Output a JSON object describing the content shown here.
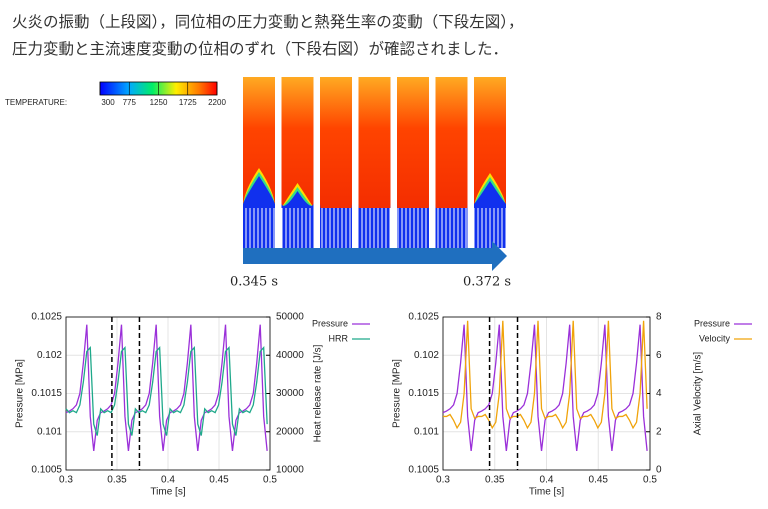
{
  "text": {
    "line1": "火炎の振動（上段図），同位相の圧力変動と熱発生率の変動（下段左図），",
    "line2": "圧力変動と主流速度変動の位相のずれ（下段右図）が確認されました．"
  },
  "figure": {
    "colorbar": {
      "label": "TEMPERATURE:",
      "ticks": [
        300,
        775,
        1250,
        1725,
        2200
      ]
    },
    "time_start": "0.345 s",
    "time_end": "0.372 s"
  },
  "chart_data": [
    {
      "type": "line",
      "xlabel": "Time [s]",
      "ylabel": "Pressure [MPa]",
      "y2label": "Heat release rate [J/s]",
      "xlim": [
        0.3,
        0.5
      ],
      "xticks": [
        0.3,
        0.35,
        0.4,
        0.45,
        0.5
      ],
      "ylim": [
        0.1005,
        0.1025
      ],
      "yticks": [
        0.1005,
        0.101,
        0.1015,
        0.102,
        0.1025
      ],
      "y2lim": [
        10000,
        50000
      ],
      "y2ticks": [
        10000,
        20000,
        30000,
        40000,
        50000
      ],
      "grid": true,
      "markers": [
        0.345,
        0.372
      ],
      "x": [
        0.3,
        0.3034,
        0.3068,
        0.3102,
        0.3136,
        0.317,
        0.3204,
        0.3238,
        0.3272,
        0.3306,
        0.334,
        0.3374,
        0.3408,
        0.3442,
        0.3476,
        0.351,
        0.3544,
        0.3578,
        0.3612,
        0.3646,
        0.368,
        0.3714,
        0.3748,
        0.3782,
        0.3816,
        0.385,
        0.3884,
        0.3918,
        0.3952,
        0.3986,
        0.402,
        0.4054,
        0.4088,
        0.4122,
        0.4156,
        0.419,
        0.4224,
        0.4258,
        0.4292,
        0.4326,
        0.436,
        0.4394,
        0.4428,
        0.4462,
        0.4496,
        0.453,
        0.4564,
        0.4598,
        0.4632,
        0.4666,
        0.47,
        0.4734,
        0.4768,
        0.4802,
        0.4836,
        0.487,
        0.4904,
        0.4938,
        0.4972
      ],
      "series": [
        {
          "name": "Pressure",
          "color": "#9b30d9",
          "values": [
            0.10125,
            0.10127,
            0.1013,
            0.10135,
            0.1015,
            0.1019,
            0.1024,
            0.1012,
            0.10075,
            0.10115,
            0.10125,
            0.10127,
            0.1013,
            0.10135,
            0.1015,
            0.1019,
            0.1024,
            0.1012,
            0.10075,
            0.10115,
            0.10125,
            0.10127,
            0.1013,
            0.10135,
            0.1015,
            0.1019,
            0.1024,
            0.1012,
            0.10075,
            0.10115,
            0.10125,
            0.10127,
            0.1013,
            0.10135,
            0.1015,
            0.1019,
            0.1024,
            0.1012,
            0.10075,
            0.10115,
            0.10125,
            0.10127,
            0.1013,
            0.10135,
            0.1015,
            0.1019,
            0.1024,
            0.1012,
            0.10075,
            0.10115,
            0.10125,
            0.10127,
            0.1013,
            0.10135,
            0.1015,
            0.1019,
            0.1024,
            0.1012,
            0.10075
          ]
        },
        {
          "name": "HRR",
          "color": "#1fa98a",
          "axis": "y2",
          "values": [
            26000,
            25000,
            25500,
            25000,
            27000,
            33000,
            41000,
            42000,
            22000,
            19000,
            26000,
            25000,
            25500,
            25000,
            27000,
            33000,
            41000,
            42000,
            22000,
            19000,
            26000,
            25000,
            25500,
            25000,
            27000,
            33000,
            41000,
            42000,
            22000,
            19000,
            26000,
            25000,
            25500,
            25000,
            27000,
            33000,
            41000,
            42000,
            22000,
            19000,
            26000,
            25000,
            25500,
            25000,
            27000,
            33000,
            41000,
            42000,
            22000,
            19000,
            26000,
            25000,
            25500,
            25000,
            27000,
            33000,
            41000,
            42000,
            22000
          ]
        }
      ]
    },
    {
      "type": "line",
      "xlabel": "Time [s]",
      "ylabel": "Pressure [MPa]",
      "y2label": "Axial Velocity [m/s]",
      "xlim": [
        0.3,
        0.5
      ],
      "xticks": [
        0.3,
        0.35,
        0.4,
        0.45,
        0.5
      ],
      "ylim": [
        0.1005,
        0.1025
      ],
      "yticks": [
        0.1005,
        0.101,
        0.1015,
        0.102,
        0.1025
      ],
      "y2lim": [
        0,
        8
      ],
      "y2ticks": [
        0,
        2,
        4,
        6,
        8
      ],
      "grid": true,
      "markers": [
        0.345,
        0.372
      ],
      "x": [
        0.3,
        0.3034,
        0.3068,
        0.3102,
        0.3136,
        0.317,
        0.3204,
        0.3238,
        0.3272,
        0.3306,
        0.334,
        0.3374,
        0.3408,
        0.3442,
        0.3476,
        0.351,
        0.3544,
        0.3578,
        0.3612,
        0.3646,
        0.368,
        0.3714,
        0.3748,
        0.3782,
        0.3816,
        0.385,
        0.3884,
        0.3918,
        0.3952,
        0.3986,
        0.402,
        0.4054,
        0.4088,
        0.4122,
        0.4156,
        0.419,
        0.4224,
        0.4258,
        0.4292,
        0.4326,
        0.436,
        0.4394,
        0.4428,
        0.4462,
        0.4496,
        0.453,
        0.4564,
        0.4598,
        0.4632,
        0.4666,
        0.47,
        0.4734,
        0.4768,
        0.4802,
        0.4836,
        0.487,
        0.4904,
        0.4938,
        0.4972
      ],
      "series": [
        {
          "name": "Pressure",
          "color": "#9b30d9",
          "values": [
            0.10125,
            0.10127,
            0.1013,
            0.10135,
            0.1015,
            0.1019,
            0.1024,
            0.1012,
            0.10075,
            0.10115,
            0.10125,
            0.10127,
            0.1013,
            0.10135,
            0.1015,
            0.1019,
            0.1024,
            0.1012,
            0.10075,
            0.10115,
            0.10125,
            0.10127,
            0.1013,
            0.10135,
            0.1015,
            0.1019,
            0.1024,
            0.1012,
            0.10075,
            0.10115,
            0.10125,
            0.10127,
            0.1013,
            0.10135,
            0.1015,
            0.1019,
            0.1024,
            0.1012,
            0.10075,
            0.10115,
            0.10125,
            0.10127,
            0.1013,
            0.10135,
            0.1015,
            0.1019,
            0.1024,
            0.1012,
            0.10075,
            0.10115,
            0.10125,
            0.10127,
            0.1013,
            0.10135,
            0.1015,
            0.1019,
            0.1024,
            0.1012,
            0.10075
          ]
        },
        {
          "name": "Velocity",
          "color": "#f0a30a",
          "axis": "y2",
          "values": [
            2.8,
            2.8,
            2.9,
            2.6,
            2.2,
            2.5,
            4,
            7.8,
            3.2,
            2.7,
            2.8,
            2.8,
            2.9,
            2.6,
            2.2,
            2.5,
            4,
            7.8,
            3.2,
            2.7,
            2.8,
            2.8,
            2.9,
            2.6,
            2.2,
            2.5,
            4,
            7.8,
            3.2,
            2.7,
            2.8,
            2.8,
            2.9,
            2.6,
            2.2,
            2.5,
            4,
            7.8,
            3.2,
            2.7,
            2.8,
            2.8,
            2.9,
            2.6,
            2.2,
            2.5,
            4,
            7.8,
            3.2,
            2.7,
            2.8,
            2.8,
            2.9,
            2.6,
            2.2,
            2.5,
            4,
            7.8,
            3.2
          ]
        }
      ]
    }
  ]
}
